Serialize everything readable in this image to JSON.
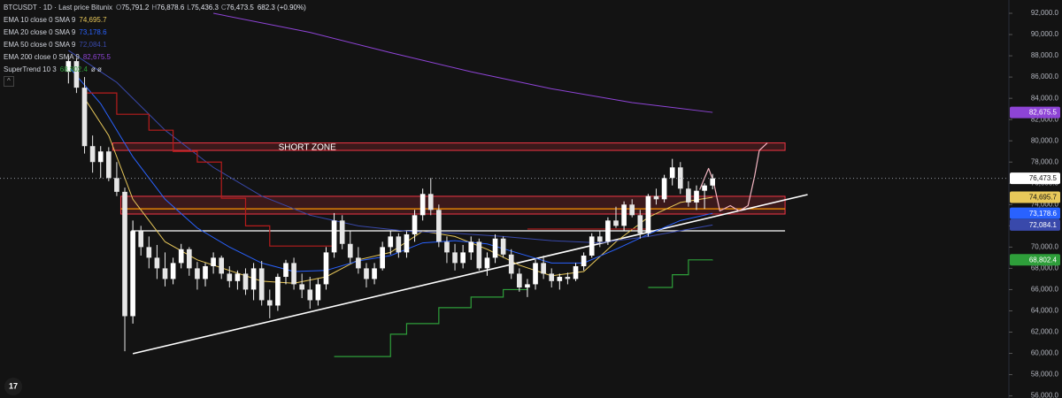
{
  "chart_data": {
    "type": "candlestick",
    "header": {
      "symbol": "BTCUSDT · 1D · Last price Bitunix",
      "ohlc": [
        {
          "label": "O",
          "value": "75,791.2"
        },
        {
          "label": "H",
          "value": "76,878.6"
        },
        {
          "label": "L",
          "value": "75,436.3"
        },
        {
          "label": "C",
          "value": "76,473.5"
        }
      ],
      "change": "682.3 (+0.90%)"
    },
    "last_price_label": "76,473.5",
    "up_color": "#ffffff",
    "down_color": "#e6e6e6",
    "xlim": [
      -8.5,
      116.8
    ],
    "ylim": [
      55800,
      93250
    ],
    "grid": false,
    "yticks": [
      {
        "value": 56000,
        "label": "56,000.0"
      },
      {
        "value": 58000,
        "label": "58,000.0"
      },
      {
        "value": 60000,
        "label": "60,000.0"
      },
      {
        "value": 62000,
        "label": "62,000.0"
      },
      {
        "value": 64000,
        "label": "64,000.0"
      },
      {
        "value": 66000,
        "label": "66,000.0"
      },
      {
        "value": 68000,
        "label": "68,000.0"
      },
      {
        "value": 70000,
        "label": "70,000.0"
      },
      {
        "value": 72000,
        "label": "72,000.0"
      },
      {
        "value": 74000,
        "label": "74,000.0"
      },
      {
        "value": 76000,
        "label": "76,000.0"
      },
      {
        "value": 78000,
        "label": "78,000.0"
      },
      {
        "value": 80000,
        "label": "80,000.0"
      },
      {
        "value": 82000,
        "label": "82,000.0"
      },
      {
        "value": 84000,
        "label": "84,000.0"
      },
      {
        "value": 86000,
        "label": "86,000.0"
      },
      {
        "value": 88000,
        "label": "88,000.0"
      },
      {
        "value": 90000,
        "label": "90,000.0"
      },
      {
        "value": 92000,
        "label": "92,000.0"
      }
    ],
    "ohlc": {
      "open": [
        86500,
        87500,
        85000,
        79500,
        78000,
        79000,
        76500,
        75200,
        63500,
        71500,
        70000,
        69000,
        68000,
        67000,
        68500,
        69800,
        68000,
        67000,
        68200,
        69000,
        67500,
        66800,
        67500,
        66000,
        68000,
        65000,
        64500,
        67200,
        68500,
        66500,
        66000,
        65000,
        66500,
        69500,
        72500,
        70300,
        69000,
        68000,
        67000,
        68000,
        70000,
        71000,
        69500,
        71200,
        73000,
        75000,
        73500,
        70500,
        69500,
        68500,
        69500,
        70500,
        68000,
        69000,
        70800,
        69300,
        67500,
        66200,
        66500,
        68500,
        67500,
        66800,
        67200,
        67000,
        68200,
        69200,
        71000,
        70500,
        72500,
        72000,
        74000,
        73000,
        71300,
        74800,
        74500,
        76500,
        77500,
        75500,
        74200,
        75300,
        75791.2
      ],
      "high": [
        88000,
        87800,
        86000,
        80500,
        79500,
        79400,
        78000,
        75600,
        72500,
        72000,
        71000,
        70200,
        69500,
        69000,
        70300,
        70000,
        68600,
        68500,
        69500,
        69200,
        68200,
        67800,
        68000,
        68500,
        68700,
        66000,
        67500,
        68800,
        69000,
        67500,
        67200,
        67000,
        70000,
        73200,
        73000,
        71500,
        70000,
        68500,
        68500,
        70500,
        71500,
        71300,
        71500,
        73500,
        75500,
        76500,
        74000,
        71000,
        70300,
        70200,
        71000,
        70800,
        69500,
        71200,
        71000,
        69800,
        68000,
        67000,
        68800,
        69200,
        68000,
        67500,
        67600,
        68500,
        69500,
        71300,
        71500,
        72800,
        73800,
        74300,
        74500,
        73500,
        75000,
        75500,
        76800,
        78300,
        78000,
        76200,
        75800,
        76000,
        76878.6
      ],
      "low": [
        85400,
        84500,
        78800,
        77000,
        76500,
        76200,
        74800,
        60200,
        62800,
        69200,
        68000,
        67000,
        66300,
        66500,
        68000,
        67300,
        66000,
        66300,
        67500,
        67000,
        66200,
        66000,
        65500,
        65000,
        64500,
        63300,
        64000,
        66500,
        66000,
        65200,
        64200,
        64500,
        66000,
        69000,
        69800,
        68500,
        67500,
        66200,
        66500,
        67800,
        69300,
        69000,
        69000,
        70500,
        72500,
        73000,
        70000,
        68500,
        67800,
        68000,
        68800,
        67800,
        67300,
        68500,
        69000,
        67000,
        65800,
        65300,
        66000,
        67000,
        66200,
        66000,
        66500,
        66800,
        67800,
        69000,
        70000,
        70200,
        71800,
        71500,
        72800,
        70800,
        71000,
        74000,
        74200,
        75800,
        75000,
        73800,
        73500,
        73600,
        75436.3
      ],
      "close": [
        87500,
        85000,
        79500,
        78000,
        79000,
        76500,
        75200,
        63500,
        71500,
        70000,
        69000,
        68000,
        67000,
        68500,
        69800,
        68000,
        67000,
        68200,
        69000,
        67500,
        66800,
        67500,
        66000,
        68000,
        65000,
        64500,
        67200,
        68500,
        66500,
        66000,
        65000,
        66500,
        69500,
        72500,
        70300,
        69000,
        68000,
        67000,
        68000,
        70000,
        71000,
        69500,
        71200,
        73000,
        75000,
        73500,
        70500,
        69500,
        68500,
        69500,
        70500,
        68000,
        69000,
        70800,
        69300,
        67500,
        66200,
        66500,
        68500,
        67500,
        66800,
        67200,
        67000,
        68200,
        69200,
        71000,
        70500,
        72500,
        72000,
        74000,
        73000,
        71300,
        74800,
        74500,
        76500,
        77500,
        75500,
        74200,
        75300,
        75800,
        76473.5
      ]
    },
    "indicators": [
      {
        "name": "EMA 10 close 0 SMA 9",
        "last_label": "74,695.7",
        "color": "#e8c85a",
        "x": [
          2,
          5,
          8,
          12,
          16,
          20,
          24,
          28,
          32,
          36,
          40,
          44,
          48,
          52,
          56,
          60,
          64,
          68,
          72,
          76,
          80
        ],
        "values": [
          84000,
          80500,
          74500,
          70500,
          68800,
          67800,
          66800,
          66600,
          67200,
          68800,
          69500,
          71500,
          71000,
          69800,
          68300,
          67300,
          67700,
          70500,
          72800,
          74200,
          74695.7
        ]
      },
      {
        "name": "EMA 20 close 0 SMA 9",
        "last_label": "73,178.6",
        "color": "#2962ff",
        "x": [
          0,
          4,
          8,
          12,
          16,
          20,
          24,
          28,
          32,
          36,
          40,
          44,
          48,
          52,
          56,
          60,
          64,
          68,
          72,
          76,
          80
        ],
        "values": [
          87000,
          83500,
          78500,
          74500,
          71800,
          70000,
          68500,
          67700,
          67800,
          68700,
          69200,
          70400,
          70600,
          70300,
          69400,
          68500,
          68500,
          69800,
          71200,
          72500,
          73178.6
        ]
      },
      {
        "name": "EMA 50 close 0 SMA 9",
        "last_label": "72,084.1",
        "color": "#3949ab",
        "x": [
          0,
          6,
          12,
          18,
          24,
          30,
          36,
          42,
          48,
          54,
          60,
          66,
          72,
          80
        ],
        "values": [
          88500,
          85500,
          81000,
          77500,
          74800,
          73000,
          72000,
          71500,
          71300,
          71000,
          70600,
          70400,
          71000,
          72084.1
        ]
      },
      {
        "name": "EMA 200 close 0 SMA 9",
        "last_label": "82,675.5",
        "color": "#8e44d6",
        "x": [
          18,
          30,
          40,
          50,
          60,
          70,
          80
        ],
        "values": [
          92000,
          90200,
          88300,
          86500,
          84900,
          83600,
          82675.5
        ]
      }
    ],
    "supertrend": {
      "name": "SuperTrend 10 3",
      "last_label": "68,802.4",
      "extra": "ø ø",
      "color": "#2e9e3a",
      "segments": [
        {
          "color": "#b71c1c",
          "x": [
            2,
            4,
            6,
            8,
            10,
            13,
            16,
            19,
            22,
            25,
            33
          ],
          "values": [
            84500,
            84500,
            82500,
            82500,
            81000,
            79000,
            78000,
            74600,
            72000,
            70100,
            70100
          ]
        },
        {
          "color": "#2e9e3a",
          "x": [
            33,
            34,
            40,
            42,
            46,
            50,
            54,
            57
          ],
          "values": [
            59700,
            59700,
            61800,
            62800,
            64300,
            65300,
            66000,
            66200
          ]
        },
        {
          "color": "#b71c1c",
          "x": [
            57,
            60,
            63,
            66,
            69,
            72
          ],
          "values": [
            71700,
            71700,
            71700,
            71700,
            71700,
            71700
          ]
        },
        {
          "color": "#2e9e3a",
          "x": [
            72,
            73,
            75,
            77,
            80
          ],
          "values": [
            66200,
            66200,
            67400,
            68800,
            68802.4
          ]
        }
      ]
    },
    "annotations": [
      {
        "type": "zone",
        "label": "SHORT ZONE",
        "from": 79100,
        "to": 79800,
        "x": [
          5.5,
          89
        ],
        "color": "#f23645"
      },
      {
        "type": "zone",
        "from": 73110,
        "to": 74780,
        "x": [
          6.5,
          89
        ],
        "color": "#f23645"
      },
      {
        "type": "hline",
        "value": 73600,
        "x": [
          6.5,
          89
        ],
        "color": "#ff9800"
      },
      {
        "type": "hline",
        "value": 71530,
        "x": [
          7.8,
          89
        ],
        "color": "#ffffff"
      },
      {
        "type": "trendline",
        "x": [
          8,
          91.8
        ],
        "values": [
          59970,
          74940
        ],
        "color": "#ffffff"
      },
      {
        "type": "path",
        "x": [
          78.4,
          79.5,
          80.1,
          80.9,
          82.2,
          83.3,
          84.4,
          85.2,
          85.8,
          86.8
        ],
        "values": [
          75400,
          77400,
          76200,
          73400,
          73900,
          73400,
          73900,
          76600,
          79100,
          79800
        ],
        "color": "#f4b6c2"
      }
    ]
  }
}
